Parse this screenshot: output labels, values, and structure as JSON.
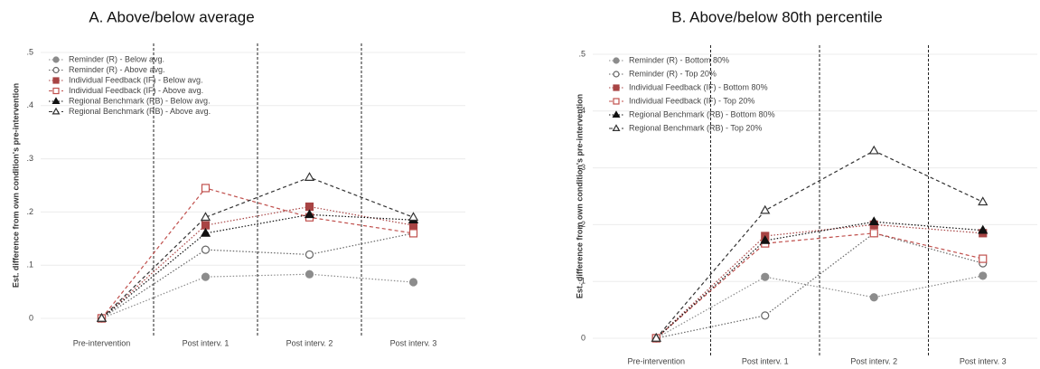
{
  "chart_data": [
    {
      "type": "line",
      "title": "A. Above/below average",
      "y_label": "Est. difference from own condition's pre-intervention",
      "categories": [
        "Pre-intervention",
        "Post interv. 1",
        "Post interv. 2",
        "Post interv. 3"
      ],
      "ylim": [
        0,
        0.5
      ],
      "yticks": [
        0,
        {
          "value": 0.1,
          "label": ".1"
        },
        {
          "value": 0.2,
          "label": ".2"
        },
        {
          "value": 0.3,
          "label": ".3"
        },
        {
          "value": 0.4,
          "label": ".4"
        },
        {
          "value": 0.5,
          "label": ".5"
        }
      ],
      "grid": true,
      "legend": "upper left",
      "series": [
        {
          "name": "Reminder (R) - Below avg.",
          "color": "#8c8c8c",
          "marker": "circle",
          "filled": true,
          "dash": "dotted",
          "values": [
            0,
            0.078,
            0.083,
            0.068
          ]
        },
        {
          "name": "Reminder (R) - Above avg.",
          "color": "#666666",
          "marker": "circle",
          "filled": false,
          "dash": "dotted",
          "values": [
            0,
            0.129,
            0.12,
            0.16
          ]
        },
        {
          "name": "Individual Feedback (IF) - Below avg.",
          "color": "#a84444",
          "marker": "square",
          "filled": true,
          "dash": "dotted",
          "values": [
            0,
            0.175,
            0.21,
            0.175
          ]
        },
        {
          "name": "Individual Feedback (IF) - Above avg.",
          "color": "#c0504d",
          "marker": "square",
          "filled": false,
          "dash": "dashed",
          "values": [
            0,
            0.245,
            0.19,
            0.16
          ]
        },
        {
          "name": "Regional Benchmark (RB) - Below avg.",
          "color": "#111111",
          "marker": "triangle",
          "filled": true,
          "dash": "dotted",
          "values": [
            0,
            0.16,
            0.195,
            0.185
          ]
        },
        {
          "name": "Regional Benchmark (RB) - Above avg.",
          "color": "#333333",
          "marker": "triangle",
          "filled": false,
          "dash": "dashed",
          "values": [
            0,
            0.19,
            0.265,
            0.19
          ]
        }
      ]
    },
    {
      "type": "line",
      "title": "B. Above/below 80th percentile",
      "y_label": "Est. difference from own condition's pre-intervention",
      "categories": [
        "Pre-intervention",
        "Post interv. 1",
        "Post interv. 2",
        "Post interv. 3"
      ],
      "ylim": [
        0,
        0.5
      ],
      "yticks": [
        0,
        {
          "value": 0.1,
          "label": ".1"
        },
        {
          "value": 0.2,
          "label": ".2"
        },
        {
          "value": 0.3,
          "label": ".3"
        },
        {
          "value": 0.4,
          "label": ".4"
        },
        {
          "value": 0.5,
          "label": ".5"
        }
      ],
      "grid": true,
      "legend": "upper left",
      "series": [
        {
          "name": "Reminder (R) - Bottom 80%",
          "color": "#8c8c8c",
          "marker": "circle",
          "filled": true,
          "dash": "dotted",
          "values": [
            0,
            0.108,
            0.072,
            0.11
          ]
        },
        {
          "name": "Reminder (R) - Top 20%",
          "color": "#666666",
          "marker": "circle",
          "filled": false,
          "dash": "dotted",
          "values": [
            0,
            0.04,
            0.185,
            0.132
          ]
        },
        {
          "name": "Individual Feedback (IF) - Bottom 80%",
          "color": "#a84444",
          "marker": "square",
          "filled": true,
          "dash": "dotted",
          "values": [
            0,
            0.18,
            0.2,
            0.185
          ]
        },
        {
          "name": "Individual Feedback (IF) - Top 20%",
          "color": "#c0504d",
          "marker": "square",
          "filled": false,
          "dash": "dashed",
          "values": [
            0,
            0.167,
            0.185,
            0.14
          ]
        },
        {
          "name": "Regional Benchmark (RB) - Bottom 80%",
          "color": "#111111",
          "marker": "triangle",
          "filled": true,
          "dash": "dotted",
          "values": [
            0,
            0.172,
            0.205,
            0.19
          ]
        },
        {
          "name": "Regional Benchmark (RB) - Top 20%",
          "color": "#333333",
          "marker": "triangle",
          "filled": false,
          "dash": "dashed",
          "values": [
            0,
            0.225,
            0.33,
            0.24
          ]
        }
      ]
    }
  ]
}
